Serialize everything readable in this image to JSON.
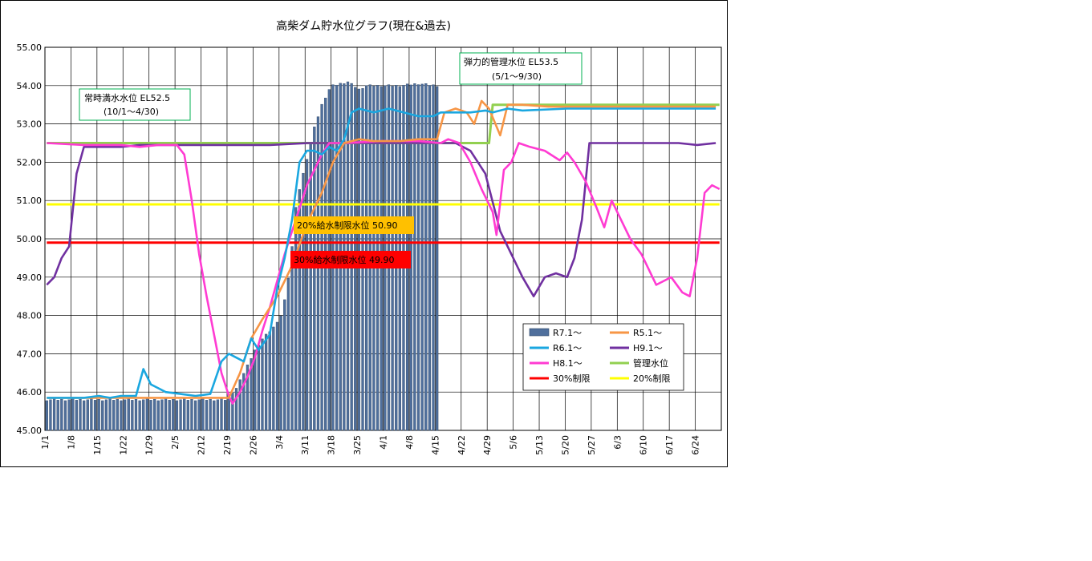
{
  "chart_data": {
    "type": "bar+line",
    "title": "高柴ダム貯水位グラフ(現在&過去)",
    "xlabel": "",
    "ylabel": "",
    "ylim": [
      45.0,
      55.0
    ],
    "yticks": [
      "45.00",
      "46.00",
      "47.00",
      "48.00",
      "49.00",
      "50.00",
      "51.00",
      "52.00",
      "53.00",
      "54.00",
      "55.00"
    ],
    "xticks": [
      "1/1",
      "1/8",
      "1/15",
      "1/22",
      "1/29",
      "2/5",
      "2/12",
      "2/19",
      "2/26",
      "3/4",
      "3/11",
      "3/18",
      "3/25",
      "4/1",
      "4/8",
      "4/15",
      "4/22",
      "4/29",
      "5/6",
      "5/13",
      "5/20",
      "5/27",
      "6/3",
      "6/10",
      "6/17",
      "6/24"
    ],
    "grid": true,
    "legend_position": "bottom-right",
    "series": [
      {
        "name": "R7.1～",
        "kind": "bar",
        "color": "#4f6f9c",
        "points": [
          [
            0,
            45.8
          ],
          [
            14,
            45.8
          ],
          [
            20,
            45.8
          ],
          [
            44,
            45.8
          ],
          [
            48,
            45.8
          ],
          [
            49,
            45.9
          ],
          [
            50,
            46.0
          ],
          [
            51,
            46.1
          ],
          [
            52,
            46.3
          ],
          [
            53,
            46.5
          ],
          [
            54,
            46.7
          ],
          [
            55,
            46.9
          ],
          [
            56,
            47.1
          ],
          [
            57,
            47.2
          ],
          [
            58,
            47.4
          ],
          [
            59,
            47.5
          ],
          [
            60,
            47.6
          ],
          [
            61,
            47.7
          ],
          [
            62,
            47.8
          ],
          [
            63,
            48.0
          ],
          [
            64,
            48.4
          ],
          [
            65,
            49.0
          ],
          [
            66,
            49.8
          ],
          [
            67,
            50.8
          ],
          [
            68,
            51.3
          ],
          [
            69,
            51.7
          ],
          [
            70,
            52.1
          ],
          [
            71,
            52.5
          ],
          [
            72,
            52.9
          ],
          [
            73,
            53.2
          ],
          [
            74,
            53.5
          ],
          [
            75,
            53.7
          ],
          [
            76,
            53.9
          ],
          [
            77,
            54.0
          ],
          [
            81,
            54.1
          ],
          [
            84,
            53.9
          ],
          [
            86,
            54.0
          ],
          [
            95,
            54.0
          ],
          [
            100,
            54.05
          ],
          [
            105,
            54.0
          ]
        ]
      },
      {
        "name": "R5.1～",
        "kind": "line",
        "color": "#f79646",
        "points": [
          [
            0,
            45.85
          ],
          [
            14,
            45.85
          ],
          [
            20,
            45.85
          ],
          [
            44,
            45.85
          ],
          [
            49,
            45.85
          ],
          [
            52,
            46.5
          ],
          [
            55,
            47.4
          ],
          [
            58,
            47.9
          ],
          [
            62,
            48.5
          ],
          [
            66,
            49.3
          ],
          [
            70,
            50.4
          ],
          [
            74,
            51.2
          ],
          [
            77,
            52.0
          ],
          [
            80,
            52.5
          ],
          [
            84,
            52.6
          ],
          [
            88,
            52.55
          ],
          [
            95,
            52.55
          ],
          [
            100,
            52.6
          ],
          [
            105,
            52.6
          ],
          [
            107,
            53.3
          ],
          [
            110,
            53.4
          ],
          [
            113,
            53.3
          ],
          [
            115,
            53.0
          ],
          [
            117,
            53.6
          ],
          [
            119,
            53.4
          ],
          [
            122,
            52.7
          ],
          [
            124,
            53.5
          ],
          [
            128,
            53.5
          ],
          [
            135,
            53.45
          ],
          [
            140,
            53.45
          ],
          [
            160,
            53.45
          ],
          [
            180,
            53.45
          ]
        ]
      },
      {
        "name": "R6.1～",
        "kind": "line",
        "color": "#1aa7e0",
        "points": [
          [
            0,
            45.85
          ],
          [
            10,
            45.85
          ],
          [
            14,
            45.9
          ],
          [
            17,
            45.85
          ],
          [
            20,
            45.9
          ],
          [
            24,
            45.9
          ],
          [
            26,
            46.6
          ],
          [
            28,
            46.2
          ],
          [
            30,
            46.1
          ],
          [
            32,
            46.0
          ],
          [
            36,
            45.95
          ],
          [
            40,
            45.9
          ],
          [
            44,
            45.95
          ],
          [
            47,
            46.8
          ],
          [
            49,
            47.0
          ],
          [
            51,
            46.9
          ],
          [
            53,
            46.8
          ],
          [
            55,
            47.4
          ],
          [
            57,
            47.1
          ],
          [
            60,
            47.5
          ],
          [
            62,
            48.7
          ],
          [
            64,
            49.5
          ],
          [
            66,
            50.5
          ],
          [
            68,
            52.0
          ],
          [
            70,
            52.3
          ],
          [
            72,
            52.3
          ],
          [
            74,
            52.2
          ],
          [
            76,
            52.4
          ],
          [
            78,
            52.3
          ],
          [
            80,
            52.6
          ],
          [
            82,
            53.3
          ],
          [
            84,
            53.4
          ],
          [
            88,
            53.3
          ],
          [
            92,
            53.4
          ],
          [
            96,
            53.3
          ],
          [
            100,
            53.2
          ],
          [
            104,
            53.2
          ],
          [
            106,
            53.3
          ],
          [
            110,
            53.3
          ],
          [
            114,
            53.3
          ],
          [
            118,
            53.35
          ],
          [
            120,
            53.3
          ],
          [
            124,
            53.4
          ],
          [
            128,
            53.35
          ],
          [
            140,
            53.4
          ],
          [
            150,
            53.4
          ],
          [
            160,
            53.4
          ],
          [
            170,
            53.4
          ],
          [
            180,
            53.4
          ]
        ]
      },
      {
        "name": "H9.1～",
        "kind": "line",
        "color": "#7030a0",
        "points": [
          [
            0,
            48.8
          ],
          [
            2,
            49.0
          ],
          [
            4,
            49.5
          ],
          [
            6,
            49.8
          ],
          [
            8,
            51.7
          ],
          [
            10,
            52.4
          ],
          [
            14,
            52.4
          ],
          [
            20,
            52.4
          ],
          [
            25,
            52.45
          ],
          [
            30,
            52.45
          ],
          [
            40,
            52.45
          ],
          [
            50,
            52.45
          ],
          [
            60,
            52.45
          ],
          [
            70,
            52.5
          ],
          [
            80,
            52.5
          ],
          [
            90,
            52.5
          ],
          [
            100,
            52.5
          ],
          [
            106,
            52.5
          ],
          [
            110,
            52.5
          ],
          [
            114,
            52.3
          ],
          [
            118,
            51.7
          ],
          [
            122,
            50.2
          ],
          [
            125,
            49.6
          ],
          [
            128,
            49.0
          ],
          [
            131,
            48.5
          ],
          [
            134,
            49.0
          ],
          [
            137,
            49.1
          ],
          [
            140,
            49.0
          ],
          [
            142,
            49.5
          ],
          [
            144,
            50.5
          ],
          [
            146,
            52.5
          ],
          [
            150,
            52.5
          ],
          [
            160,
            52.5
          ],
          [
            170,
            52.5
          ],
          [
            175,
            52.45
          ],
          [
            180,
            52.5
          ]
        ]
      },
      {
        "name": "H8.1～",
        "kind": "line",
        "color": "#ff3bd2",
        "points": [
          [
            0,
            52.5
          ],
          [
            10,
            52.45
          ],
          [
            20,
            52.45
          ],
          [
            25,
            52.4
          ],
          [
            30,
            52.45
          ],
          [
            35,
            52.45
          ],
          [
            37,
            52.2
          ],
          [
            39,
            51.0
          ],
          [
            41,
            49.6
          ],
          [
            43,
            48.5
          ],
          [
            45,
            47.5
          ],
          [
            47,
            46.5
          ],
          [
            49,
            45.9
          ],
          [
            50,
            45.7
          ],
          [
            52,
            46.0
          ],
          [
            54,
            46.4
          ],
          [
            56,
            46.9
          ],
          [
            58,
            47.6
          ],
          [
            60,
            48.2
          ],
          [
            62,
            48.9
          ],
          [
            64,
            49.6
          ],
          [
            66,
            50.2
          ],
          [
            68,
            50.8
          ],
          [
            70,
            51.4
          ],
          [
            72,
            51.8
          ],
          [
            74,
            52.2
          ],
          [
            76,
            52.5
          ],
          [
            80,
            52.5
          ],
          [
            90,
            52.55
          ],
          [
            100,
            52.55
          ],
          [
            106,
            52.5
          ],
          [
            108,
            52.6
          ],
          [
            111,
            52.5
          ],
          [
            114,
            52.0
          ],
          [
            117,
            51.3
          ],
          [
            120,
            50.7
          ],
          [
            121,
            50.1
          ],
          [
            123,
            51.8
          ],
          [
            125,
            52.0
          ],
          [
            127,
            52.5
          ],
          [
            130,
            52.4
          ],
          [
            134,
            52.3
          ],
          [
            138,
            52.05
          ],
          [
            140,
            52.25
          ],
          [
            142,
            52.0
          ],
          [
            145,
            51.5
          ],
          [
            148,
            50.8
          ],
          [
            150,
            50.3
          ],
          [
            152,
            51.0
          ],
          [
            154,
            50.6
          ],
          [
            157,
            50.0
          ],
          [
            160,
            49.6
          ],
          [
            164,
            48.8
          ],
          [
            166,
            48.9
          ],
          [
            168,
            49.0
          ],
          [
            171,
            48.6
          ],
          [
            173,
            48.5
          ],
          [
            175,
            49.5
          ],
          [
            177,
            51.2
          ],
          [
            179,
            51.4
          ],
          [
            181,
            51.3
          ]
        ]
      },
      {
        "name": "管理水位",
        "kind": "line",
        "color": "#92d050",
        "points": [
          [
            0,
            52.5
          ],
          [
            119,
            52.5
          ],
          [
            120,
            53.5
          ],
          [
            181,
            53.5
          ]
        ]
      },
      {
        "name": "30%制限",
        "kind": "line",
        "color": "#ff0000",
        "points": [
          [
            0,
            49.9
          ],
          [
            181,
            49.9
          ]
        ]
      },
      {
        "name": "20%制限",
        "kind": "line",
        "color": "#ffff00",
        "points": [
          [
            0,
            50.9
          ],
          [
            181,
            50.9
          ]
        ]
      }
    ],
    "annotations": [
      {
        "line1": "常時満水水位  EL52.5",
        "line2": "(10/1～4/30)",
        "box_color": "#00b050"
      },
      {
        "line1": "弾力的管理水位  EL53.5",
        "line2": "(5/1～9/30)",
        "box_color": "#00b050"
      },
      {
        "text": "20%給水制限水位  50.90",
        "bg_color": "#ffc000"
      },
      {
        "text": "30%給水制限水位  49.90",
        "bg_color": "#ff0000"
      }
    ]
  }
}
